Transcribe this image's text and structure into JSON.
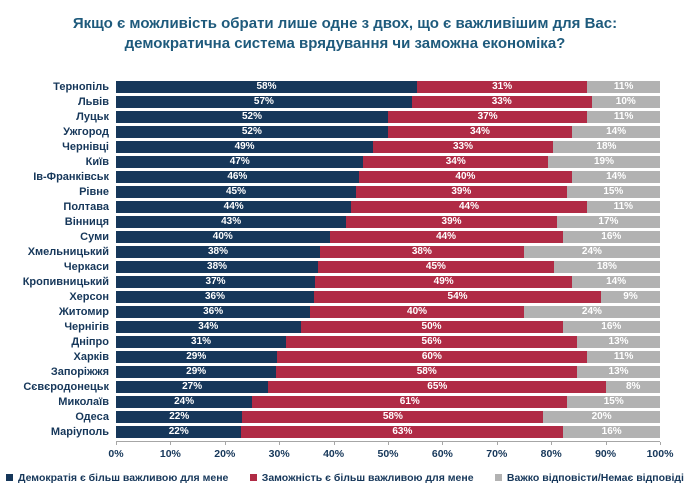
{
  "title": "Якщо є можливість обрати лише одне з двох, що є важливішим для Вас:\nдемократична система врядування чи заможна економіка?",
  "colors": {
    "democracy": "#16375A",
    "wealth": "#B02B45",
    "undecided": "#B2B2B2",
    "title_text": "#1E5A7C",
    "axis_text": "#16375A",
    "axis_line": "#A6A6A6",
    "value_text": "#FFFFFF"
  },
  "x_axis": {
    "ticks": [
      "0%",
      "10%",
      "20%",
      "30%",
      "40%",
      "50%",
      "60%",
      "70%",
      "80%",
      "90%",
      "100%"
    ]
  },
  "legend": [
    {
      "label": "Демократія є більш важливою для мене",
      "color": "#16375A"
    },
    {
      "label": "Заможність є більш важливою для мене",
      "color": "#B02B45"
    },
    {
      "label": "Важко відповісти/Немає відповіді",
      "color": "#B2B2B2"
    }
  ],
  "chart_data": {
    "type": "bar",
    "orientation": "horizontal-stacked",
    "title": "Якщо є можливість обрати лише одне з двох, що є важливішим для Вас: демократична система врядування чи заможна економіка?",
    "xlabel": "",
    "ylabel": "",
    "xlim": [
      0,
      100
    ],
    "value_suffix": "%",
    "grid": false,
    "legend_position": "bottom",
    "categories": [
      "Тернопіль",
      "Львів",
      "Луцьк",
      "Ужгород",
      "Чернівці",
      "Київ",
      "Ів-Франківськ",
      "Рівне",
      "Полтава",
      "Вінниця",
      "Суми",
      "Хмельницький",
      "Черкаси",
      "Кропивницький",
      "Херсон",
      "Житомир",
      "Чернігів",
      "Дніпро",
      "Харків",
      "Запоріжжя",
      "Сєвєродонецьк",
      "Миколаїв",
      "Одеса",
      "Маріуполь"
    ],
    "series": [
      {
        "name": "Демократія є більш важливою для мене",
        "color": "#16375A",
        "values": [
          58,
          57,
          52,
          52,
          49,
          47,
          46,
          45,
          44,
          43,
          40,
          38,
          38,
          37,
          36,
          36,
          34,
          31,
          29,
          29,
          27,
          24,
          22,
          22
        ]
      },
      {
        "name": "Заможність є більш важливою для мене",
        "color": "#B02B45",
        "values": [
          31,
          33,
          37,
          34,
          33,
          34,
          40,
          39,
          44,
          39,
          44,
          38,
          45,
          49,
          54,
          40,
          50,
          56,
          60,
          58,
          65,
          61,
          58,
          63
        ]
      },
      {
        "name": "Важко відповісти/Немає відповіді",
        "color": "#B2B2B2",
        "values": [
          11,
          10,
          11,
          14,
          18,
          19,
          14,
          15,
          11,
          17,
          16,
          24,
          18,
          14,
          9,
          24,
          16,
          13,
          11,
          13,
          8,
          15,
          20,
          16
        ]
      }
    ]
  }
}
